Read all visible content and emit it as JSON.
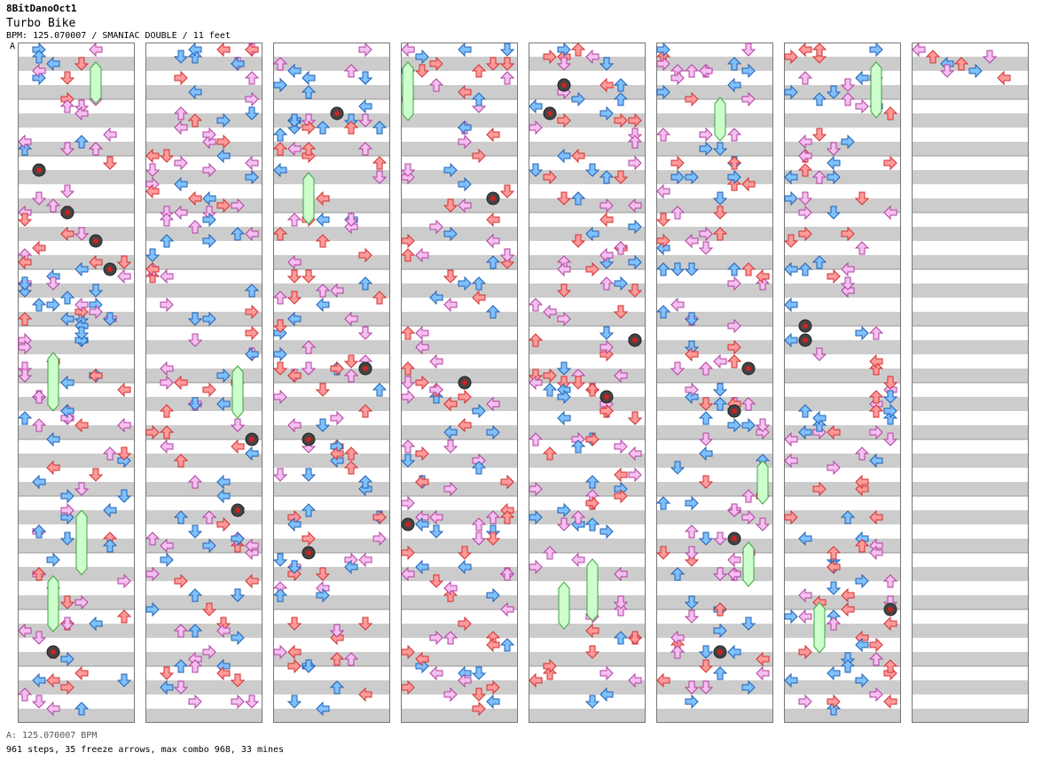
{
  "header": {
    "author": "8BitDanoOct1",
    "song_title": "Turbo Bike",
    "info": "BPM: 125.070007 / SMANIAC DOUBLE / 11 feet"
  },
  "chart": {
    "segment_marker": "A",
    "columns": 8,
    "measures_per_column": 12,
    "lanes_per_measure_row": 8,
    "row_height_measures": 4,
    "colors": {
      "stripe_light": "#ffffff",
      "stripe_dark": "#cccccc",
      "border": "#777777",
      "arrow_pink": "#f5c0f0",
      "arrow_pink_stroke": "#b040a0",
      "arrow_red": "#ff9a9a",
      "arrow_red_stroke": "#d03030",
      "arrow_blue": "#7fc0ff",
      "arrow_blue_stroke": "#2060b0",
      "freeze_green": "#ccffcc",
      "freeze_green_stroke": "#40a040",
      "mine_ring": "#444444",
      "mine_core": "#cc2222"
    }
  },
  "footer": {
    "bpm_line": "A: 125.070007 BPM",
    "stats": "961 steps, 35 freeze arrows, max combo 968, 33 mines"
  }
}
